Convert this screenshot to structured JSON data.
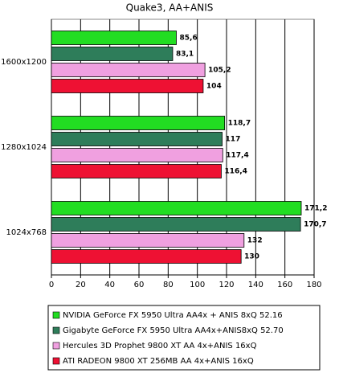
{
  "chart_data": {
    "type": "hbar",
    "title": "Quake3, AA+ANIS",
    "categories": [
      "1600x1200",
      "1280x1024",
      "1024x768"
    ],
    "series": [
      {
        "name": "NVIDIA GeForce FX 5950 Ultra AA4x + ANIS 8xQ 52.16",
        "color": "#22dd22",
        "values": [
          85.6,
          118.7,
          171.2
        ],
        "value_labels": [
          "85,6",
          "118,7",
          "171,2"
        ]
      },
      {
        "name": "Gigabyte GeForce FX 5950 Ultra AA4x+ANIS8xQ 52.70",
        "color": "#2e7d5a",
        "values": [
          83.1,
          117,
          170.7
        ],
        "value_labels": [
          "83,1",
          "117",
          "170,7"
        ]
      },
      {
        "name": "Hercules 3D Prophet 9800 XT AA 4x+ANIS 16xQ",
        "color": "#f0a0e0",
        "values": [
          105.2,
          117.4,
          132
        ],
        "value_labels": [
          "105,2",
          "117,4",
          "132"
        ]
      },
      {
        "name": "ATI RADEON 9800 XT 256MB AA 4x+ANIS 16xQ",
        "color": "#ee1133",
        "values": [
          104,
          116.4,
          130
        ],
        "value_labels": [
          "104",
          "116,4",
          "130"
        ]
      }
    ],
    "xlim": [
      0,
      180
    ],
    "xticks": [
      0,
      20,
      40,
      60,
      80,
      100,
      120,
      140,
      160,
      180
    ],
    "grid": true
  }
}
